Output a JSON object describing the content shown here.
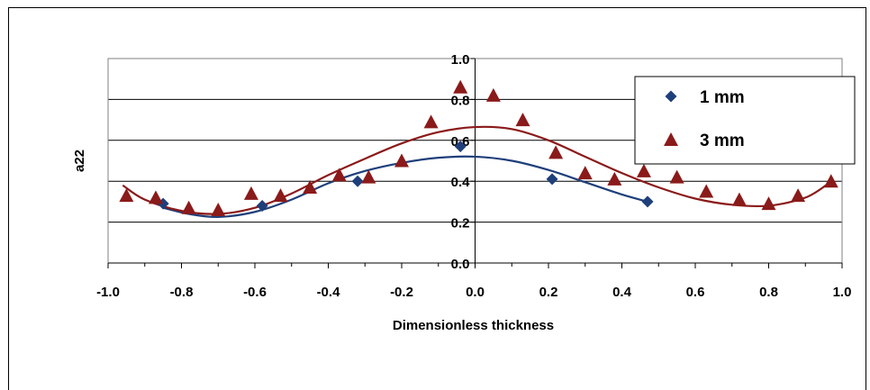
{
  "chart_data": {
    "type": "scatter",
    "title": "",
    "xlabel": "Dimensionless thickness",
    "ylabel": "a22",
    "xlim": [
      -1.0,
      1.0
    ],
    "ylim": [
      0.0,
      1.0
    ],
    "xticks": [
      "-1.0",
      "-0.8",
      "-0.6",
      "-0.4",
      "-0.2",
      "0.0",
      "0.2",
      "0.4",
      "0.6",
      "0.8",
      "1.0"
    ],
    "yticks": [
      "0.0",
      "0.2",
      "0.4",
      "0.6",
      "0.8",
      "1.0"
    ],
    "grid": "horizontal",
    "legend_position": "top-right",
    "series": [
      {
        "name": "1 mm",
        "marker": "diamond",
        "color": "#1F3F7A",
        "points": [
          [
            -0.85,
            0.29
          ],
          [
            -0.58,
            0.28
          ],
          [
            -0.32,
            0.4
          ],
          [
            -0.04,
            0.57
          ],
          [
            0.21,
            0.41
          ],
          [
            0.47,
            0.3
          ]
        ],
        "fit": [
          [
            -0.85,
            0.27
          ],
          [
            -0.78,
            0.24
          ],
          [
            -0.7,
            0.225
          ],
          [
            -0.6,
            0.25
          ],
          [
            -0.5,
            0.31
          ],
          [
            -0.4,
            0.39
          ],
          [
            -0.3,
            0.45
          ],
          [
            -0.2,
            0.49
          ],
          [
            -0.1,
            0.515
          ],
          [
            0.0,
            0.52
          ],
          [
            0.1,
            0.5
          ],
          [
            0.2,
            0.455
          ],
          [
            0.3,
            0.395
          ],
          [
            0.4,
            0.335
          ],
          [
            0.47,
            0.3
          ]
        ]
      },
      {
        "name": "3 mm",
        "marker": "triangle",
        "color": "#8B1A1A",
        "points": [
          [
            -0.95,
            0.33
          ],
          [
            -0.87,
            0.32
          ],
          [
            -0.78,
            0.27
          ],
          [
            -0.7,
            0.26
          ],
          [
            -0.61,
            0.34
          ],
          [
            -0.53,
            0.33
          ],
          [
            -0.45,
            0.37
          ],
          [
            -0.37,
            0.43
          ],
          [
            -0.29,
            0.42
          ],
          [
            -0.2,
            0.5
          ],
          [
            -0.12,
            0.69
          ],
          [
            -0.04,
            0.86
          ],
          [
            0.05,
            0.82
          ],
          [
            0.13,
            0.7
          ],
          [
            0.22,
            0.54
          ],
          [
            0.3,
            0.44
          ],
          [
            0.38,
            0.41
          ],
          [
            0.46,
            0.45
          ],
          [
            0.55,
            0.42
          ],
          [
            0.63,
            0.35
          ],
          [
            0.72,
            0.31
          ],
          [
            0.8,
            0.29
          ],
          [
            0.88,
            0.33
          ],
          [
            0.97,
            0.4
          ]
        ],
        "fit": [
          [
            -0.96,
            0.38
          ],
          [
            -0.9,
            0.31
          ],
          [
            -0.8,
            0.255
          ],
          [
            -0.7,
            0.24
          ],
          [
            -0.6,
            0.27
          ],
          [
            -0.5,
            0.34
          ],
          [
            -0.4,
            0.43
          ],
          [
            -0.3,
            0.51
          ],
          [
            -0.2,
            0.585
          ],
          [
            -0.1,
            0.64
          ],
          [
            0.0,
            0.665
          ],
          [
            0.1,
            0.655
          ],
          [
            0.2,
            0.6
          ],
          [
            0.3,
            0.52
          ],
          [
            0.4,
            0.44
          ],
          [
            0.5,
            0.37
          ],
          [
            0.6,
            0.315
          ],
          [
            0.7,
            0.285
          ],
          [
            0.8,
            0.28
          ],
          [
            0.9,
            0.32
          ],
          [
            0.96,
            0.385
          ]
        ]
      }
    ]
  }
}
